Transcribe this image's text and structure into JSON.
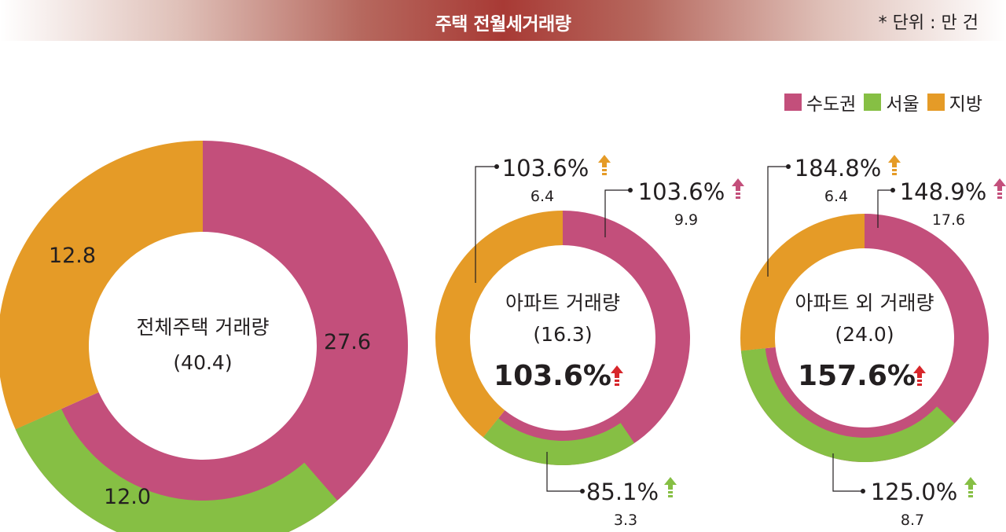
{
  "header": {
    "title": "주택 전월세거래량",
    "unit": "* 단위 : 만 건"
  },
  "legend": [
    {
      "label": "수도권",
      "color": "#c34f7b"
    },
    {
      "label": "서울",
      "color": "#86bf44"
    },
    {
      "label": "지방",
      "color": "#e59b27"
    }
  ],
  "chart_data": [
    {
      "type": "pie",
      "title": "전체주택 거래량",
      "total": "(40.4)",
      "slices": [
        {
          "name": "수도권",
          "value": 27.6,
          "label": "27.6",
          "color": "#c34f7b"
        },
        {
          "name": "지방",
          "value": 12.8,
          "label": "12.8",
          "color": "#e59b27"
        }
      ],
      "inner_series": {
        "name": "서울",
        "value": 12.0,
        "label": "12.0",
        "color": "#86bf44"
      }
    },
    {
      "type": "pie",
      "title": "아파트 거래량",
      "total": "(16.3)",
      "change": "103.6%",
      "slices": [
        {
          "name": "수도권",
          "value": 9.9,
          "pct": "103.6%",
          "label": "9.9",
          "color": "#c34f7b"
        },
        {
          "name": "지방",
          "value": 6.4,
          "pct": "103.6%",
          "label": "6.4",
          "color": "#e59b27"
        }
      ],
      "inner_series": {
        "name": "서울",
        "value": 3.3,
        "pct": "85.1%",
        "label": "3.3",
        "color": "#86bf44"
      }
    },
    {
      "type": "pie",
      "title": "아파트 외 거래량",
      "total": "(24.0)",
      "change": "157.6%",
      "slices": [
        {
          "name": "수도권",
          "value": 17.6,
          "pct": "148.9%",
          "label": "17.6",
          "color": "#c34f7b"
        },
        {
          "name": "지방",
          "value": 6.4,
          "pct": "184.8%",
          "label": "6.4",
          "color": "#e59b27"
        }
      ],
      "inner_series": {
        "name": "서울",
        "value": 8.7,
        "pct": "125.0%",
        "label": "8.7",
        "color": "#86bf44"
      }
    }
  ]
}
